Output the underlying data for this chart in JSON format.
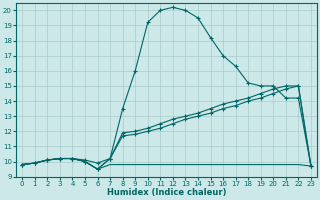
{
  "xlabel": "Humidex (Indice chaleur)",
  "bg_color": "#cce8e8",
  "grid_color": "#aacccc",
  "line_color": "#006666",
  "xlim": [
    -0.5,
    23.5
  ],
  "ylim": [
    9,
    20.5
  ],
  "xticks": [
    0,
    1,
    2,
    3,
    4,
    5,
    6,
    7,
    8,
    9,
    10,
    11,
    12,
    13,
    14,
    15,
    16,
    17,
    18,
    19,
    20,
    21,
    22,
    23
  ],
  "yticks": [
    9,
    10,
    11,
    12,
    13,
    14,
    15,
    16,
    17,
    18,
    19,
    20
  ],
  "series": [
    {
      "x": [
        0,
        1,
        2,
        3,
        4,
        5,
        6,
        7,
        8,
        9,
        10,
        11,
        12,
        13,
        14,
        15,
        16,
        17,
        18,
        19,
        20,
        21,
        22,
        23
      ],
      "y": [
        9.8,
        9.9,
        10.1,
        10.2,
        10.2,
        10.1,
        9.9,
        10.2,
        13.5,
        16.0,
        19.2,
        20.0,
        20.2,
        20.0,
        19.5,
        18.2,
        17.0,
        16.3,
        15.2,
        15.0,
        15.0,
        14.2,
        14.2,
        9.7
      ],
      "marker": true
    },
    {
      "x": [
        0,
        1,
        2,
        3,
        4,
        5,
        6,
        7,
        8,
        9,
        10,
        11,
        12,
        13,
        14,
        15,
        16,
        17,
        18,
        19,
        20,
        21,
        22,
        23
      ],
      "y": [
        9.8,
        9.9,
        10.1,
        10.2,
        10.2,
        10.0,
        9.5,
        10.2,
        11.7,
        11.8,
        12.0,
        12.2,
        12.5,
        12.8,
        13.0,
        13.2,
        13.5,
        13.7,
        14.0,
        14.2,
        14.5,
        14.8,
        15.0,
        9.7
      ],
      "marker": true
    },
    {
      "x": [
        0,
        1,
        2,
        3,
        4,
        5,
        6,
        7,
        8,
        9,
        10,
        11,
        12,
        13,
        14,
        15,
        16,
        17,
        18,
        19,
        20,
        21,
        22,
        23
      ],
      "y": [
        9.8,
        9.9,
        10.1,
        10.2,
        10.2,
        10.0,
        9.5,
        10.2,
        11.9,
        12.0,
        12.2,
        12.5,
        12.8,
        13.0,
        13.2,
        13.5,
        13.8,
        14.0,
        14.2,
        14.5,
        14.8,
        15.0,
        15.0,
        9.7
      ],
      "marker": true
    },
    {
      "x": [
        0,
        1,
        2,
        3,
        4,
        5,
        6,
        7,
        8,
        9,
        10,
        11,
        12,
        13,
        14,
        15,
        16,
        17,
        18,
        19,
        20,
        21,
        22,
        23
      ],
      "y": [
        9.8,
        9.9,
        10.1,
        10.2,
        10.2,
        10.0,
        9.5,
        9.8,
        9.8,
        9.8,
        9.8,
        9.8,
        9.8,
        9.8,
        9.8,
        9.8,
        9.8,
        9.8,
        9.8,
        9.8,
        9.8,
        9.8,
        9.8,
        9.7
      ],
      "marker": false
    }
  ]
}
